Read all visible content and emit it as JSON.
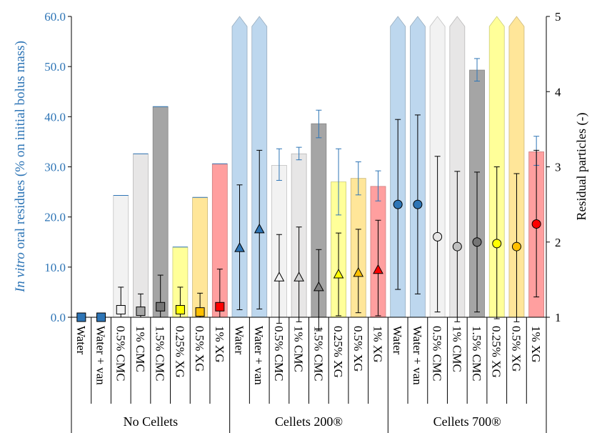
{
  "chart_data": {
    "type": "bar",
    "title": "",
    "y_left": {
      "label_italic": "In vitro",
      "label_rest": " oral residues (% on initial bolus mass)",
      "ylim": [
        0,
        60
      ],
      "ticks": [
        "0.0",
        "10.0",
        "20.0",
        "30.0",
        "40.0",
        "50.0",
        "60.0"
      ],
      "tick_values": [
        0,
        10,
        20,
        30,
        40,
        50,
        60
      ],
      "color": "#2e75b6"
    },
    "y_right": {
      "label": "Residual particles (-)",
      "ylim": [
        1,
        5
      ],
      "ticks": [
        "1",
        "2",
        "3",
        "4",
        "5"
      ],
      "tick_values": [
        1,
        2,
        3,
        4,
        5
      ]
    },
    "groups": [
      {
        "name": "No Cellets",
        "start": 0,
        "count": 8
      },
      {
        "name": "Cellets 200®",
        "start": 8,
        "count": 8
      },
      {
        "name": "Cellets 700®",
        "start": 16,
        "count": 8
      }
    ],
    "categories": [
      "Water",
      "Water + van",
      "0.5% CMC",
      "1% CMC",
      "1.5% CMC",
      "0.25% XG",
      "0.5% XG",
      "1% XG",
      "Water",
      "Water + van",
      "0.5% CMC",
      "1% CMC",
      "1.5% CMC",
      "0.25% XG",
      "0.5% XG",
      "1% XG",
      "Water",
      "Water + van",
      "0.5% CMC",
      "1% CMC",
      "1.5% CMC",
      "0.25% XG",
      "0.5% XG",
      "1% XG"
    ],
    "residue_series": {
      "name": "In vitro oral residues (%)",
      "values": [
        0,
        0,
        24.3,
        32.6,
        42.0,
        14.0,
        23.9,
        30.6,
        60,
        60,
        30.3,
        32.6,
        38.6,
        27.0,
        27.7,
        26.1,
        60,
        60,
        60,
        60,
        49.3,
        60,
        60,
        33.0
      ],
      "err_low": [
        0,
        0,
        0,
        0,
        0,
        0,
        0,
        0,
        0,
        0,
        3.0,
        1.2,
        2.8,
        6.6,
        3.3,
        2.9,
        0,
        0,
        0,
        0,
        2.2,
        0,
        0,
        2.7
      ],
      "err_high": [
        0,
        0,
        0,
        0,
        0,
        0,
        0,
        0,
        0,
        0,
        3.3,
        1.3,
        2.7,
        6.6,
        3.3,
        3.1,
        0,
        0,
        0,
        0,
        2.3,
        0,
        0,
        3.1
      ],
      "off_scale": [
        false,
        false,
        false,
        false,
        false,
        false,
        false,
        false,
        true,
        true,
        false,
        false,
        false,
        false,
        false,
        false,
        true,
        true,
        true,
        true,
        false,
        true,
        true,
        false
      ]
    },
    "particles_series": {
      "name": "Residual particles",
      "values": [
        1.0,
        1.0,
        1.1,
        1.08,
        1.14,
        1.1,
        1.07,
        1.14,
        1.92,
        2.17,
        1.53,
        1.53,
        1.4,
        1.57,
        1.59,
        1.63,
        2.5,
        2.5,
        2.07,
        1.94,
        2.0,
        1.98,
        1.94,
        2.24
      ],
      "err_low": [
        0,
        0,
        0.1,
        0.08,
        0.14,
        0.1,
        0.07,
        0.14,
        0.82,
        1.06,
        0.61,
        0.59,
        0.58,
        0.55,
        0.53,
        0.61,
        1.13,
        1.19,
        1.0,
        1.0,
        0.93,
        1.0,
        1.0,
        0.97
      ],
      "err_high": [
        0,
        0,
        0.3,
        0.23,
        0.42,
        0.3,
        0.25,
        0.5,
        0.84,
        1.05,
        0.57,
        0.67,
        0.5,
        0.55,
        0.58,
        0.66,
        1.13,
        1.19,
        1.07,
        1.0,
        0.93,
        1.02,
        0.97,
        0.98
      ],
      "marker_shapes": [
        "square",
        "square",
        "square",
        "square",
        "square",
        "square",
        "square",
        "square",
        "triangle",
        "triangle",
        "triangle",
        "triangle",
        "triangle",
        "triangle",
        "triangle",
        "triangle",
        "circle",
        "circle",
        "circle",
        "circle",
        "circle",
        "circle",
        "circle",
        "circle"
      ]
    },
    "bar_colors": [
      "#bdd7ee",
      "#bdd7ee",
      "#f2f2f2",
      "#e7e6e6",
      "#a5a5a5",
      "#ffff99",
      "#ffe699",
      "#ff9f9f",
      "#bdd7ee",
      "#bdd7ee",
      "#f2f2f2",
      "#e7e6e6",
      "#a5a5a5",
      "#ffff99",
      "#ffe699",
      "#ff9f9f",
      "#bdd7ee",
      "#bdd7ee",
      "#f2f2f2",
      "#e7e6e6",
      "#a5a5a5",
      "#ffff99",
      "#ffe699",
      "#ff9f9f"
    ],
    "marker_colors": [
      "#2e75b6",
      "#2e75b6",
      "#f2f2f2",
      "#a6a6a6",
      "#757575",
      "#ffff00",
      "#ffc000",
      "#ff0000",
      "#2e75b6",
      "#2e75b6",
      "#f2f2f2",
      "#d0d0d0",
      "#808080",
      "#ffff00",
      "#ffc000",
      "#ff0000",
      "#2e75b6",
      "#2e75b6",
      "#e7e6e6",
      "#bfbfbf",
      "#757575",
      "#ffff00",
      "#ffc000",
      "#ff0000"
    ],
    "grid": false,
    "legend": "none"
  }
}
